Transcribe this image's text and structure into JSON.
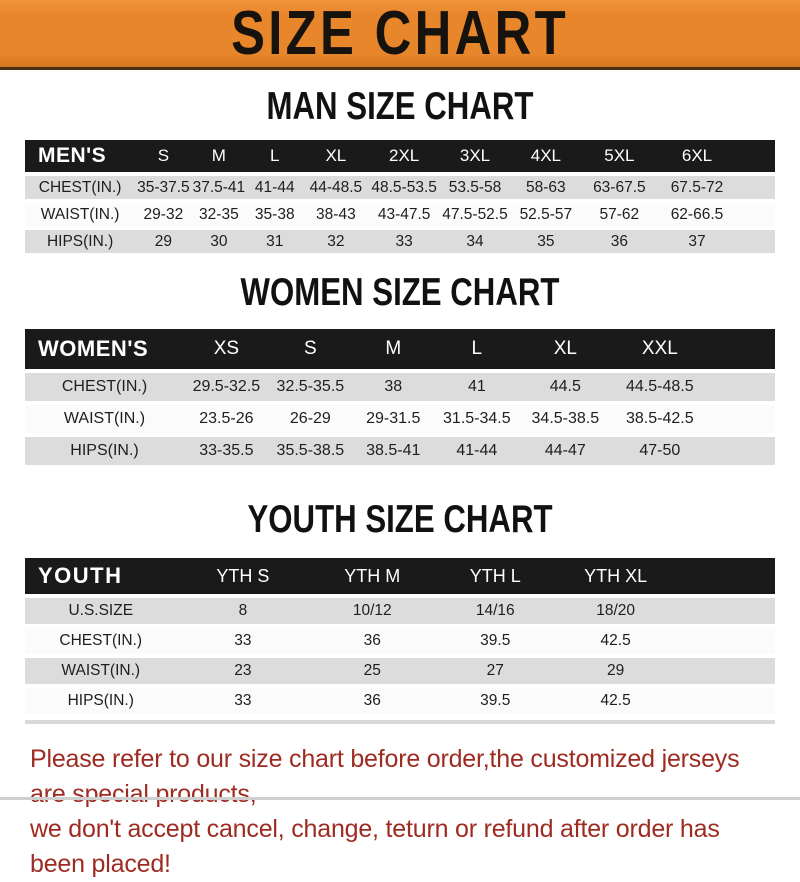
{
  "banner": {
    "title": "SIZE CHART"
  },
  "sections": [
    {
      "title": "MAN SIZE CHART",
      "table": {
        "corner_label": "MEN'S",
        "columns": [
          "S",
          "M",
          "L",
          "XL",
          "2XL",
          "3XL",
          "4XL",
          "5XL",
          "6XL"
        ],
        "rows": [
          {
            "label": "CHEST(IN.)",
            "values": [
              "35-37.5",
              "37.5-41",
              "41-44",
              "44-48.5",
              "48.5-53.5",
              "53.5-58",
              "58-63",
              "63-67.5",
              "67.5-72"
            ]
          },
          {
            "label": "WAIST(IN.)",
            "values": [
              "29-32",
              "32-35",
              "35-38",
              "38-43",
              "43-47.5",
              "47.5-52.5",
              "52.5-57",
              "57-62",
              "62-66.5"
            ]
          },
          {
            "label": "HIPS(IN.)",
            "values": [
              "29",
              "30",
              "31",
              "32",
              "33",
              "34",
              "35",
              "36",
              "37"
            ]
          }
        ]
      }
    },
    {
      "title": "WOMEN SIZE CHART",
      "table": {
        "corner_label": "WOMEN'S",
        "columns": [
          "XS",
          "S",
          "M",
          "L",
          "XL",
          "XXL"
        ],
        "rows": [
          {
            "label": "CHEST(IN.)",
            "values": [
              "29.5-32.5",
              "32.5-35.5",
              "38",
              "41",
              "44.5",
              "44.5-48.5"
            ]
          },
          {
            "label": "WAIST(IN.)",
            "values": [
              "23.5-26",
              "26-29",
              "29-31.5",
              "31.5-34.5",
              "34.5-38.5",
              "38.5-42.5"
            ]
          },
          {
            "label": "HIPS(IN.)",
            "values": [
              "33-35.5",
              "35.5-38.5",
              "38.5-41",
              "41-44",
              "44-47",
              "47-50"
            ]
          }
        ]
      }
    },
    {
      "title": "YOUTH SIZE CHART",
      "table": {
        "corner_label": "YOUTH",
        "columns": [
          "YTH S",
          "YTH M",
          "YTH L",
          "YTH XL"
        ],
        "rows": [
          {
            "label": "U.S.SIZE",
            "values": [
              "8",
              "10/12",
              "14/16",
              "18/20"
            ]
          },
          {
            "label": "CHEST(IN.)",
            "values": [
              "33",
              "36",
              "39.5",
              "42.5"
            ]
          },
          {
            "label": "WAIST(IN.)",
            "values": [
              "23",
              "25",
              "27",
              "29"
            ]
          },
          {
            "label": "HIPS(IN.)",
            "values": [
              "33",
              "36",
              "39.5",
              "42.5"
            ]
          }
        ]
      }
    }
  ],
  "disclaimer": {
    "line1": "Please refer to our size chart before order,the customized jerseys are special products,",
    "line2": "we don't accept cancel, change, teturn or refund after order has been placed!"
  },
  "colors": {
    "banner_orange": "#E8862B",
    "header_black": "#1A1A1A",
    "row_gray": "#DCDCDC",
    "row_white": "#FBFBFB",
    "disclaimer_red": "#9E2B21"
  }
}
